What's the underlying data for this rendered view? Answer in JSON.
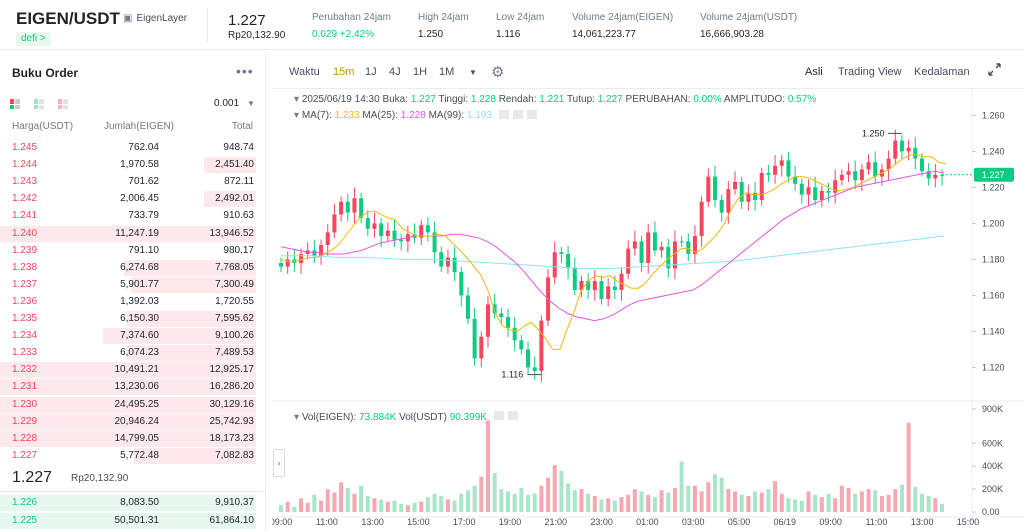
{
  "header": {
    "pair": "EIGEN/USDT",
    "token_name": "EigenLayer",
    "tag": "defi >",
    "last_price": "1.227",
    "last_price_idr": "Rp20,132.90",
    "stats": [
      {
        "label": "Perubahan 24jam",
        "value": "0.029 +2.42%",
        "positive": true
      },
      {
        "label": "High 24jam",
        "value": "1.250"
      },
      {
        "label": "Low 24jam",
        "value": "1.116"
      },
      {
        "label": "Volume 24jam(EIGEN)",
        "value": "14,061,223.77"
      },
      {
        "label": "Volume 24jam(USDT)",
        "value": "16,666,903.28"
      }
    ]
  },
  "orderbook": {
    "title": "Buku Order",
    "more": "•••",
    "precision": "0.001",
    "col_price": "Harga(USDT)",
    "col_amount": "Jumlah(EIGEN)",
    "col_total": "Total",
    "asks": [
      {
        "price": "1.245",
        "amount": "762.04",
        "total": "948.74",
        "depth": 0.0
      },
      {
        "price": "1.244",
        "amount": "1,970.58",
        "total": "2,451.40",
        "depth": 0.19
      },
      {
        "price": "1.243",
        "amount": "701.62",
        "total": "872.11",
        "depth": 0.0
      },
      {
        "price": "1.242",
        "amount": "2,006.45",
        "total": "2,492.01",
        "depth": 0.19
      },
      {
        "price": "1.241",
        "amount": "733.79",
        "total": "910.63",
        "depth": 0.0
      },
      {
        "price": "1.240",
        "amount": "11,247.19",
        "total": "13,946.52",
        "depth": 1.0
      },
      {
        "price": "1.239",
        "amount": "791.10",
        "total": "980.17",
        "depth": 0.0
      },
      {
        "price": "1.238",
        "amount": "6,274.68",
        "total": "7,768.05",
        "depth": 0.66
      },
      {
        "price": "1.237",
        "amount": "5,901.77",
        "total": "7,300.49",
        "depth": 0.62
      },
      {
        "price": "1.236",
        "amount": "1,392.03",
        "total": "1,720.55",
        "depth": 0.0
      },
      {
        "price": "1.235",
        "amount": "6,150.30",
        "total": "7,595.62",
        "depth": 0.64
      },
      {
        "price": "1.234",
        "amount": "7,374.60",
        "total": "9,100.26",
        "depth": 0.78
      },
      {
        "price": "1.233",
        "amount": "6,074.23",
        "total": "7,489.53",
        "depth": 0.64
      },
      {
        "price": "1.232",
        "amount": "10,491.21",
        "total": "12,925.17",
        "depth": 1.0
      },
      {
        "price": "1.231",
        "amount": "13,230.06",
        "total": "16,286.20",
        "depth": 1.0
      },
      {
        "price": "1.230",
        "amount": "24,495.25",
        "total": "30,129.16",
        "depth": 1.0
      },
      {
        "price": "1.229",
        "amount": "20,946.24",
        "total": "25,742.93",
        "depth": 1.0
      },
      {
        "price": "1.228",
        "amount": "14,799.05",
        "total": "18,173.23",
        "depth": 1.0
      },
      {
        "price": "1.227",
        "amount": "5,772.48",
        "total": "7,082.83",
        "depth": 0.6
      }
    ],
    "mid_price": "1.227",
    "mid_price_idr": "Rp20,132.90",
    "bids": [
      {
        "price": "1.226",
        "amount": "8,083.50",
        "total": "9,910.37",
        "depth": 1.0
      },
      {
        "price": "1.225",
        "amount": "50,501.31",
        "total": "61,864.10",
        "depth": 1.0
      }
    ]
  },
  "toolbar": {
    "time_label": "Waktu",
    "intervals": [
      "15m",
      "1J",
      "4J",
      "1H",
      "1M"
    ],
    "active_interval": "15m",
    "views": [
      "Asli",
      "Trading View",
      "Kedalaman"
    ],
    "active_view": "Asli"
  },
  "legend": {
    "datetime": "2025/06/19 14:30",
    "open_label": "Buka:",
    "open": "1.227",
    "high_label": "Tinggi:",
    "high": "1.228",
    "low_label": "Rendah:",
    "low": "1.221",
    "close_label": "Tutup:",
    "close": "1.227",
    "change_label": "PERUBAHAN:",
    "change": "0.00%",
    "amp_label": "AMPLITUDO:",
    "amp": "0.57%",
    "ma7_label": "MA(7):",
    "ma7": "1.233",
    "ma25_label": "MA(25):",
    "ma25": "1.228",
    "ma99_label": "MA(99):",
    "ma99": "1.193",
    "vol_eigen_label": "Vol(EIGEN):",
    "vol_eigen": "73.884K",
    "vol_usdt_label": "Vol(USDT)",
    "vol_usdt": "90.399K"
  },
  "colors": {
    "up": "#0ecb81",
    "down": "#f6465d",
    "ma7": "#f0b90b",
    "ma25": "#e157e1",
    "ma99": "#8fe3ee",
    "accent": "#c99400"
  },
  "chart_data": {
    "type": "candlestick",
    "price_axis": {
      "ticks": [
        "1.260",
        "1.240",
        "1.220",
        "1.200",
        "1.180",
        "1.160",
        "1.140",
        "1.120"
      ],
      "range": [
        1.108,
        1.268
      ]
    },
    "volume_axis": {
      "ticks": [
        "900K",
        "600K",
        "400K",
        "200K",
        "0.00"
      ],
      "range": [
        0,
        900000
      ]
    },
    "time_ticks": [
      "09:00",
      "11:00",
      "13:00",
      "15:00",
      "17:00",
      "19:00",
      "21:00",
      "23:00",
      "01:00",
      "03:00",
      "05:00",
      "06/19",
      "09:00",
      "11:00",
      "13:00",
      "15:00"
    ],
    "current_price": "1.227",
    "high_marker": "1.250",
    "low_marker": "1.116",
    "closes": [
      1.178,
      1.176,
      1.18,
      1.178,
      1.183,
      1.185,
      1.182,
      1.188,
      1.195,
      1.205,
      1.212,
      1.206,
      1.214,
      1.203,
      1.197,
      1.2,
      1.193,
      1.196,
      1.191,
      1.19,
      1.194,
      1.192,
      1.199,
      1.195,
      1.184,
      1.176,
      1.181,
      1.173,
      1.16,
      1.147,
      1.125,
      1.137,
      1.155,
      1.15,
      1.148,
      1.142,
      1.135,
      1.13,
      1.12,
      1.118,
      1.146,
      1.17,
      1.184,
      1.183,
      1.175,
      1.163,
      1.168,
      1.163,
      1.168,
      1.158,
      1.165,
      1.163,
      1.172,
      1.186,
      1.19,
      1.178,
      1.195,
      1.185,
      1.187,
      1.175,
      1.19,
      1.19,
      1.183,
      1.193,
      1.212,
      1.226,
      1.213,
      1.206,
      1.219,
      1.223,
      1.212,
      1.217,
      1.213,
      1.228,
      1.227,
      1.232,
      1.235,
      1.226,
      1.222,
      1.216,
      1.22,
      1.213,
      1.218,
      1.217,
      1.224,
      1.227,
      1.229,
      1.224,
      1.23,
      1.234,
      1.226,
      1.23,
      1.236,
      1.246,
      1.24,
      1.242,
      1.236,
      1.229,
      1.225,
      1.227
    ],
    "opens": [
      1.176,
      1.18,
      1.178,
      1.183,
      1.185,
      1.182,
      1.188,
      1.195,
      1.205,
      1.212,
      1.206,
      1.214,
      1.203,
      1.197,
      1.2,
      1.193,
      1.196,
      1.191,
      1.19,
      1.194,
      1.192,
      1.199,
      1.195,
      1.184,
      1.176,
      1.181,
      1.173,
      1.16,
      1.147,
      1.125,
      1.137,
      1.155,
      1.15,
      1.148,
      1.142,
      1.135,
      1.13,
      1.12,
      1.118,
      1.146,
      1.17,
      1.184,
      1.183,
      1.175,
      1.163,
      1.168,
      1.163,
      1.168,
      1.158,
      1.165,
      1.163,
      1.172,
      1.186,
      1.19,
      1.178,
      1.195,
      1.185,
      1.187,
      1.175,
      1.19,
      1.19,
      1.183,
      1.193,
      1.212,
      1.226,
      1.213,
      1.206,
      1.219,
      1.223,
      1.212,
      1.217,
      1.213,
      1.228,
      1.227,
      1.232,
      1.235,
      1.226,
      1.222,
      1.216,
      1.22,
      1.213,
      1.218,
      1.217,
      1.224,
      1.227,
      1.229,
      1.224,
      1.23,
      1.234,
      1.226,
      1.23,
      1.236,
      1.246,
      1.24,
      1.242,
      1.236,
      1.229,
      1.225,
      1.227,
      1.227
    ],
    "volumes": [
      60000,
      90000,
      45000,
      120000,
      80000,
      150000,
      100000,
      200000,
      170000,
      260000,
      210000,
      160000,
      230000,
      140000,
      120000,
      110000,
      90000,
      100000,
      70000,
      60000,
      80000,
      90000,
      130000,
      160000,
      140000,
      110000,
      100000,
      160000,
      190000,
      230000,
      310000,
      800000,
      340000,
      200000,
      180000,
      160000,
      210000,
      150000,
      160000,
      230000,
      300000,
      410000,
      360000,
      250000,
      190000,
      200000,
      160000,
      140000,
      110000,
      120000,
      100000,
      130000,
      150000,
      200000,
      180000,
      150000,
      130000,
      190000,
      170000,
      210000,
      440000,
      230000,
      230000,
      180000,
      260000,
      330000,
      300000,
      200000,
      180000,
      150000,
      140000,
      180000,
      170000,
      200000,
      270000,
      160000,
      120000,
      110000,
      100000,
      180000,
      150000,
      130000,
      160000,
      120000,
      230000,
      210000,
      160000,
      180000,
      200000,
      190000,
      140000,
      150000,
      200000,
      240000,
      780000,
      220000,
      160000,
      140000,
      120000,
      70000
    ],
    "ma7": [
      1.18,
      1.179,
      1.179,
      1.18,
      1.181,
      1.181,
      1.183,
      1.185,
      1.188,
      1.193,
      1.198,
      1.203,
      1.206,
      1.207,
      1.205,
      1.203,
      1.202,
      1.197,
      1.195,
      1.193,
      1.193,
      1.193,
      1.194,
      1.193,
      1.189,
      1.185,
      1.181,
      1.176,
      1.171,
      1.162,
      1.15,
      1.143,
      1.141,
      1.14,
      1.143,
      1.145,
      1.141,
      1.136,
      1.13,
      1.13,
      1.141,
      1.151,
      1.163,
      1.168,
      1.171,
      1.17,
      1.171,
      1.168,
      1.166,
      1.164,
      1.164,
      1.167,
      1.172,
      1.176,
      1.18,
      1.183,
      1.186,
      1.186,
      1.184,
      1.186,
      1.19,
      1.194,
      1.2,
      1.208,
      1.214,
      1.217,
      1.216,
      1.216,
      1.217,
      1.219,
      1.222,
      1.224,
      1.226,
      1.226,
      1.225,
      1.223,
      1.221,
      1.219,
      1.218,
      1.219,
      1.22,
      1.222,
      1.224,
      1.226,
      1.228,
      1.23,
      1.233,
      1.236,
      1.238,
      1.238,
      1.237,
      1.237,
      1.234,
      1.233
    ],
    "ma25": [
      1.187,
      1.186,
      1.185,
      1.184,
      1.184,
      1.183,
      1.183,
      1.183,
      1.184,
      1.185,
      1.187,
      1.189,
      1.19,
      1.191,
      1.192,
      1.193,
      1.193,
      1.193,
      1.193,
      1.194,
      1.194,
      1.193,
      1.192,
      1.19,
      1.187,
      1.183,
      1.179,
      1.174,
      1.168,
      1.162,
      1.157,
      1.153,
      1.15,
      1.148,
      1.147,
      1.146,
      1.147,
      1.149,
      1.152,
      1.155,
      1.157,
      1.158,
      1.159,
      1.16,
      1.161,
      1.162,
      1.163,
      1.166,
      1.17,
      1.174,
      1.178,
      1.182,
      1.186,
      1.19,
      1.194,
      1.198,
      1.202,
      1.205,
      1.208,
      1.21,
      1.212,
      1.214,
      1.216,
      1.218,
      1.22,
      1.221,
      1.222,
      1.223,
      1.224,
      1.225,
      1.226,
      1.227,
      1.228,
      1.229,
      1.228
    ],
    "ma99": [
      1.182,
      1.182,
      1.181,
      1.181,
      1.18,
      1.18,
      1.179,
      1.178,
      1.177,
      1.176,
      1.175,
      1.175,
      1.176,
      1.177,
      1.178,
      1.179,
      1.181,
      1.183,
      1.185,
      1.187,
      1.189,
      1.191,
      1.193
    ]
  }
}
